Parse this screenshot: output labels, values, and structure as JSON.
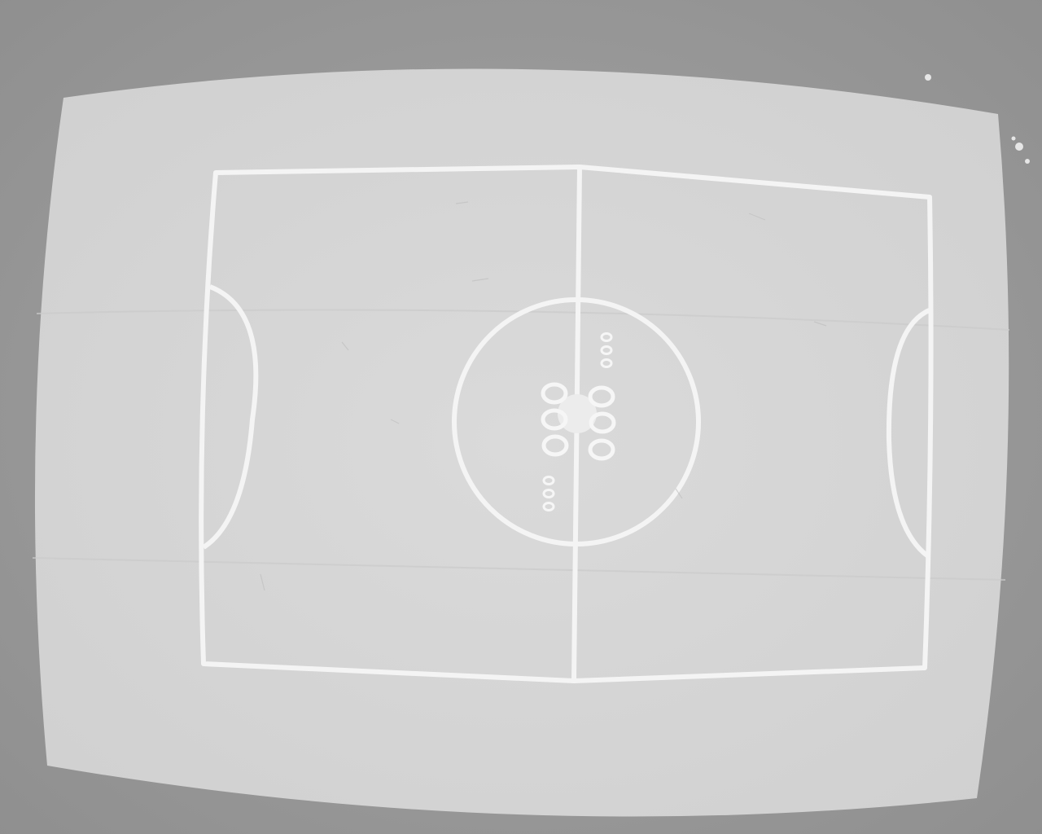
{
  "scene": {
    "subject": "field-markings",
    "colors": {
      "backdrop": "#9c9c9c",
      "backdrop_dark": "#8f8f8f",
      "screen": "#d6d6d6",
      "line": "#f4f4f4",
      "center_spot": "#ececec"
    }
  }
}
